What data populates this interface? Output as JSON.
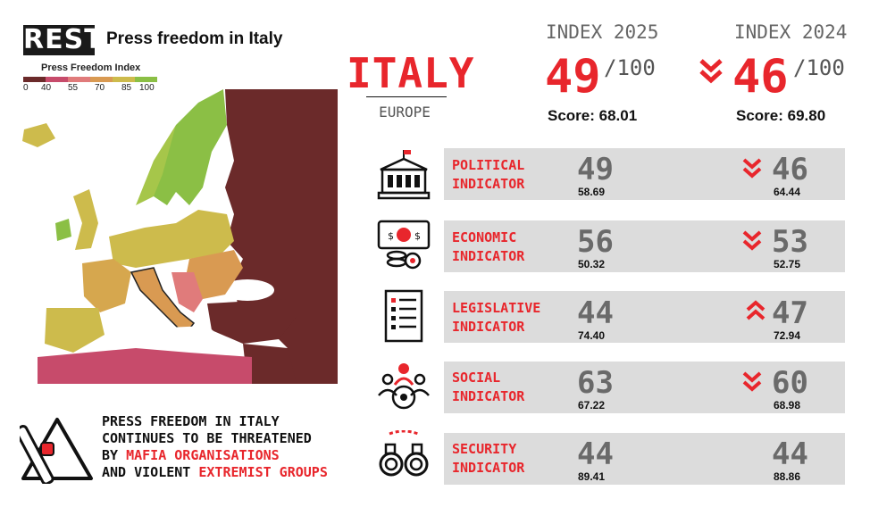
{
  "header": {
    "logo_text": "REST",
    "title": "Press freedom in Italy"
  },
  "legend": {
    "title": "Press Freedom Index",
    "ticks": [
      "0",
      "40",
      "55",
      "70",
      "85",
      "100"
    ],
    "colors": [
      "#6b2a2a",
      "#c74b6b",
      "#e07b7b",
      "#d99a52",
      "#cdbb4c",
      "#8bbf45"
    ]
  },
  "country": {
    "name": "ITALY",
    "region": "EUROPE"
  },
  "index_2025": {
    "label": "INDEX 2025",
    "rank": "49",
    "of": "/100",
    "score": "Score: 68.01"
  },
  "index_2024": {
    "label": "INDEX 2024",
    "rank": "46",
    "of": "/100",
    "score": "Score: 69.80",
    "trend_icon": "double-chevron-down"
  },
  "indicators": [
    {
      "icon": "building-icon",
      "line1": "POLITICAL",
      "line2": "INDICATOR",
      "rank_2025": "49",
      "score_2025": "58.69",
      "rank_2024": "46",
      "score_2024": "64.44",
      "trend": "down"
    },
    {
      "icon": "money-icon",
      "line1": "ECONOMIC",
      "line2": "INDICATOR",
      "rank_2025": "56",
      "score_2025": "50.32",
      "rank_2024": "53",
      "score_2024": "52.75",
      "trend": "down"
    },
    {
      "icon": "document-list-icon",
      "line1": "LEGISLATIVE",
      "line2": "INDICATOR",
      "rank_2025": "44",
      "score_2025": "74.40",
      "rank_2024": "47",
      "score_2024": "72.94",
      "trend": "up"
    },
    {
      "icon": "people-group-icon",
      "line1": "SOCIAL",
      "line2": "INDICATOR",
      "rank_2025": "63",
      "score_2025": "67.22",
      "rank_2024": "60",
      "score_2024": "68.98",
      "trend": "down"
    },
    {
      "icon": "handcuffs-icon",
      "line1": "SECURITY",
      "line2": "INDICATOR",
      "rank_2025": "44",
      "score_2025": "89.41",
      "rank_2024": "44",
      "score_2024": "88.86",
      "trend": "none"
    }
  ],
  "statement": {
    "line1": "PRESS FREEDOM IN ITALY",
    "line2": "CONTINUES TO BE THREATENED",
    "line3_prefix": "BY ",
    "line3_highlight": "MAFIA ORGANISATIONS",
    "line4_prefix": "AND VIOLENT ",
    "line4_highlight": "EXTREMIST GROUPS",
    "icon": "warning-baton-icon"
  },
  "colors": {
    "accent": "#e8262c",
    "row_bg": "#dcdcdc",
    "rank_gray": "#6a6a6a"
  }
}
